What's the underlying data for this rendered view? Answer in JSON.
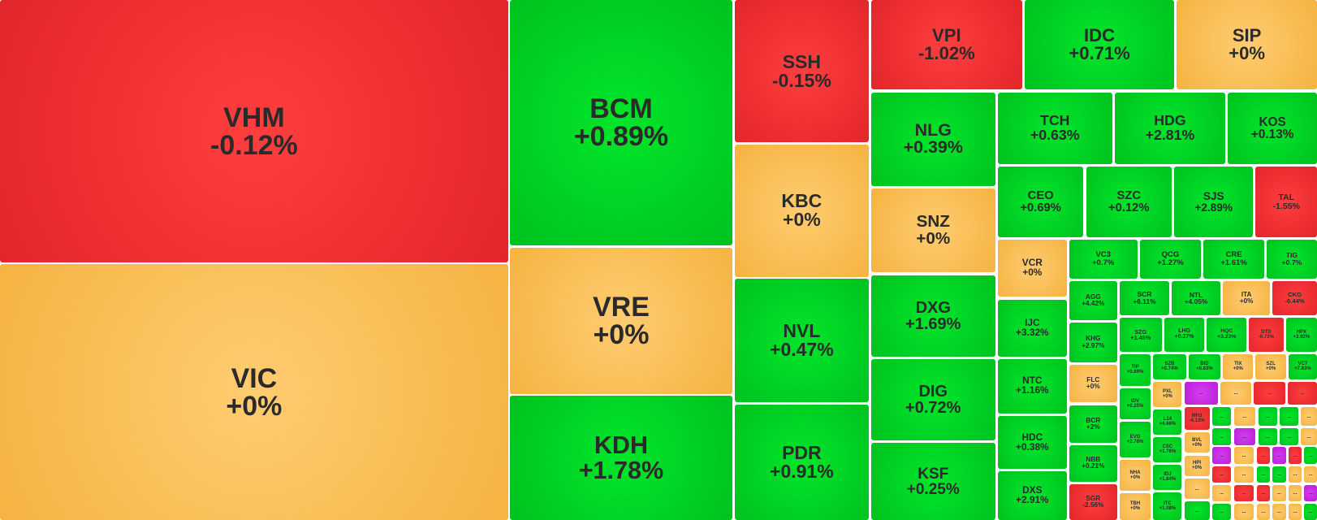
{
  "tiles": [
    {
      "ticker": "VHM",
      "change": "-0.12%",
      "color": "red"
    },
    {
      "ticker": "VIC",
      "change": "+0%",
      "color": "yellow"
    },
    {
      "ticker": "BCM",
      "change": "+0.89%",
      "color": "green"
    },
    {
      "ticker": "VRE",
      "change": "+0%",
      "color": "yellow"
    },
    {
      "ticker": "KDH",
      "change": "+1.78%",
      "color": "green"
    },
    {
      "ticker": "SSH",
      "change": "-0.15%",
      "color": "red"
    },
    {
      "ticker": "KBC",
      "change": "+0%",
      "color": "yellow"
    },
    {
      "ticker": "NVL",
      "change": "+0.47%",
      "color": "green"
    },
    {
      "ticker": "PDR",
      "change": "+0.91%",
      "color": "green"
    },
    {
      "ticker": "VPI",
      "change": "-1.02%",
      "color": "red"
    },
    {
      "ticker": "IDC",
      "change": "+0.71%",
      "color": "green"
    },
    {
      "ticker": "SIP",
      "change": "+0%",
      "color": "yellow"
    },
    {
      "ticker": "NLG",
      "change": "+0.39%",
      "color": "green"
    },
    {
      "ticker": "SNZ",
      "change": "+0%",
      "color": "yellow"
    },
    {
      "ticker": "DXG",
      "change": "+1.69%",
      "color": "green"
    },
    {
      "ticker": "DIG",
      "change": "+0.72%",
      "color": "green"
    },
    {
      "ticker": "KSF",
      "change": "+0.25%",
      "color": "green"
    },
    {
      "ticker": "TCH",
      "change": "+0.63%",
      "color": "green"
    },
    {
      "ticker": "HDG",
      "change": "+2.81%",
      "color": "green"
    },
    {
      "ticker": "KOS",
      "change": "+0.13%",
      "color": "green"
    },
    {
      "ticker": "CEO",
      "change": "+0.69%",
      "color": "green"
    },
    {
      "ticker": "SZC",
      "change": "+0.12%",
      "color": "green"
    },
    {
      "ticker": "SJS",
      "change": "+2.89%",
      "color": "green"
    },
    {
      "ticker": "TAL",
      "change": "-1.55%",
      "color": "red"
    },
    {
      "ticker": "VCR",
      "change": "+0%",
      "color": "yellow"
    },
    {
      "ticker": "IJC",
      "change": "+3.32%",
      "color": "green"
    },
    {
      "ticker": "NTC",
      "change": "+1.16%",
      "color": "green"
    },
    {
      "ticker": "HDC",
      "change": "+0.38%",
      "color": "green"
    },
    {
      "ticker": "DXS",
      "change": "+2.91%",
      "color": "green"
    },
    {
      "ticker": "VC3",
      "change": "+0.7%",
      "color": "green"
    },
    {
      "ticker": "QCG",
      "change": "+1.27%",
      "color": "green"
    },
    {
      "ticker": "CRE",
      "change": "+1.61%",
      "color": "green"
    },
    {
      "ticker": "TIG",
      "change": "+0.7%",
      "color": "green"
    },
    {
      "ticker": "AGG",
      "change": "+4.42%",
      "color": "green"
    },
    {
      "ticker": "KHG",
      "change": "+2.97%",
      "color": "green"
    },
    {
      "ticker": "FLC",
      "change": "+0%",
      "color": "yellow"
    },
    {
      "ticker": "BCR",
      "change": "+2%",
      "color": "green"
    },
    {
      "ticker": "NBB",
      "change": "+0.21%",
      "color": "green"
    },
    {
      "ticker": "SGR",
      "change": "-2.56%",
      "color": "red"
    },
    {
      "ticker": "SCR",
      "change": "+6.11%",
      "color": "green"
    },
    {
      "ticker": "NTL",
      "change": "+4.05%",
      "color": "green"
    },
    {
      "ticker": "ITA",
      "change": "+0%",
      "color": "yellow"
    },
    {
      "ticker": "CKG",
      "change": "-0.44%",
      "color": "red"
    },
    {
      "ticker": "SZG",
      "change": "+1.45%",
      "color": "green"
    },
    {
      "ticker": "LHG",
      "change": "+0.27%",
      "color": "green"
    },
    {
      "ticker": "HQC",
      "change": "+3.23%",
      "color": "green"
    },
    {
      "ticker": "DTD",
      "change": "-0.73%",
      "color": "red"
    },
    {
      "ticker": "HPX",
      "change": "+3.92%",
      "color": "green"
    },
    {
      "ticker": "TIP",
      "change": "+0.89%",
      "color": "green"
    },
    {
      "ticker": "SZB",
      "change": "+0.74%",
      "color": "green"
    },
    {
      "ticker": "BID",
      "change": "+0.83%",
      "color": "green"
    },
    {
      "ticker": "TIX",
      "change": "+0%",
      "color": "yellow"
    },
    {
      "ticker": "SZL",
      "change": "+0%",
      "color": "yellow"
    },
    {
      "ticker": "VC7",
      "change": "+7.83%",
      "color": "green"
    },
    {
      "ticker": "IDV",
      "change": "+0.25%",
      "color": "green"
    },
    {
      "ticker": "PXL",
      "change": "+0%",
      "color": "yellow"
    },
    {
      "ticker": "...",
      "color": "purple"
    },
    {
      "ticker": "...",
      "color": "yellow"
    },
    {
      "ticker": "...",
      "color": "red"
    },
    {
      "ticker": "...",
      "color": "red"
    },
    {
      "ticker": "EVG",
      "change": "+2.78%",
      "color": "green"
    },
    {
      "ticker": "L14",
      "change": "+4.66%",
      "color": "green"
    },
    {
      "ticker": "MH3",
      "change": "-4.13%",
      "color": "red"
    },
    {
      "ticker": "CSC",
      "change": "+1.76%",
      "color": "green"
    },
    {
      "ticker": "BVL",
      "change": "+0%",
      "color": "yellow"
    },
    {
      "ticker": "NHA",
      "change": "+0%",
      "color": "yellow"
    },
    {
      "ticker": "IDJ",
      "change": "+1.84%",
      "color": "green"
    },
    {
      "ticker": "HPI",
      "change": "+0%",
      "color": "yellow"
    },
    {
      "ticker": "TBH",
      "change": "+0%",
      "color": "yellow"
    },
    {
      "ticker": "ITC",
      "change": "+1.08%",
      "color": "green"
    },
    {
      "ticker": "...",
      "color": "yellow"
    },
    {
      "ticker": "...",
      "color": "green"
    },
    {
      "ticker": "...",
      "color": "green"
    },
    {
      "ticker": "...",
      "color": "yellow"
    },
    {
      "ticker": "...",
      "color": "green"
    },
    {
      "ticker": "...",
      "color": "green"
    },
    {
      "ticker": "...",
      "color": "yellow"
    },
    {
      "ticker": "...",
      "color": "green"
    },
    {
      "ticker": "...",
      "color": "purple"
    },
    {
      "ticker": "...",
      "color": "green"
    },
    {
      "ticker": "...",
      "color": "green"
    },
    {
      "ticker": "...",
      "color": "yellow"
    },
    {
      "ticker": "...",
      "color": "purple"
    },
    {
      "ticker": "...",
      "color": "yellow"
    },
    {
      "ticker": "...",
      "color": "red"
    },
    {
      "ticker": "...",
      "color": "purple"
    },
    {
      "ticker": "...",
      "color": "red"
    },
    {
      "ticker": "...",
      "color": "green"
    },
    {
      "ticker": "...",
      "color": "red"
    },
    {
      "ticker": "...",
      "color": "yellow"
    },
    {
      "ticker": "...",
      "color": "green"
    },
    {
      "ticker": "...",
      "color": "green"
    },
    {
      "ticker": "...",
      "color": "yellow"
    },
    {
      "ticker": "...",
      "color": "yellow"
    },
    {
      "ticker": "...",
      "color": "yellow"
    },
    {
      "ticker": "...",
      "color": "red"
    },
    {
      "ticker": "...",
      "color": "red"
    },
    {
      "ticker": "...",
      "color": "yellow"
    },
    {
      "ticker": "...",
      "color": "yellow"
    },
    {
      "ticker": "...",
      "color": "purple"
    },
    {
      "ticker": "...",
      "color": "green"
    },
    {
      "ticker": "...",
      "color": "yellow"
    },
    {
      "ticker": "...",
      "color": "yellow"
    },
    {
      "ticker": "...",
      "color": "yellow"
    },
    {
      "ticker": "...",
      "color": "yellow"
    },
    {
      "ticker": "...",
      "color": "green"
    }
  ]
}
